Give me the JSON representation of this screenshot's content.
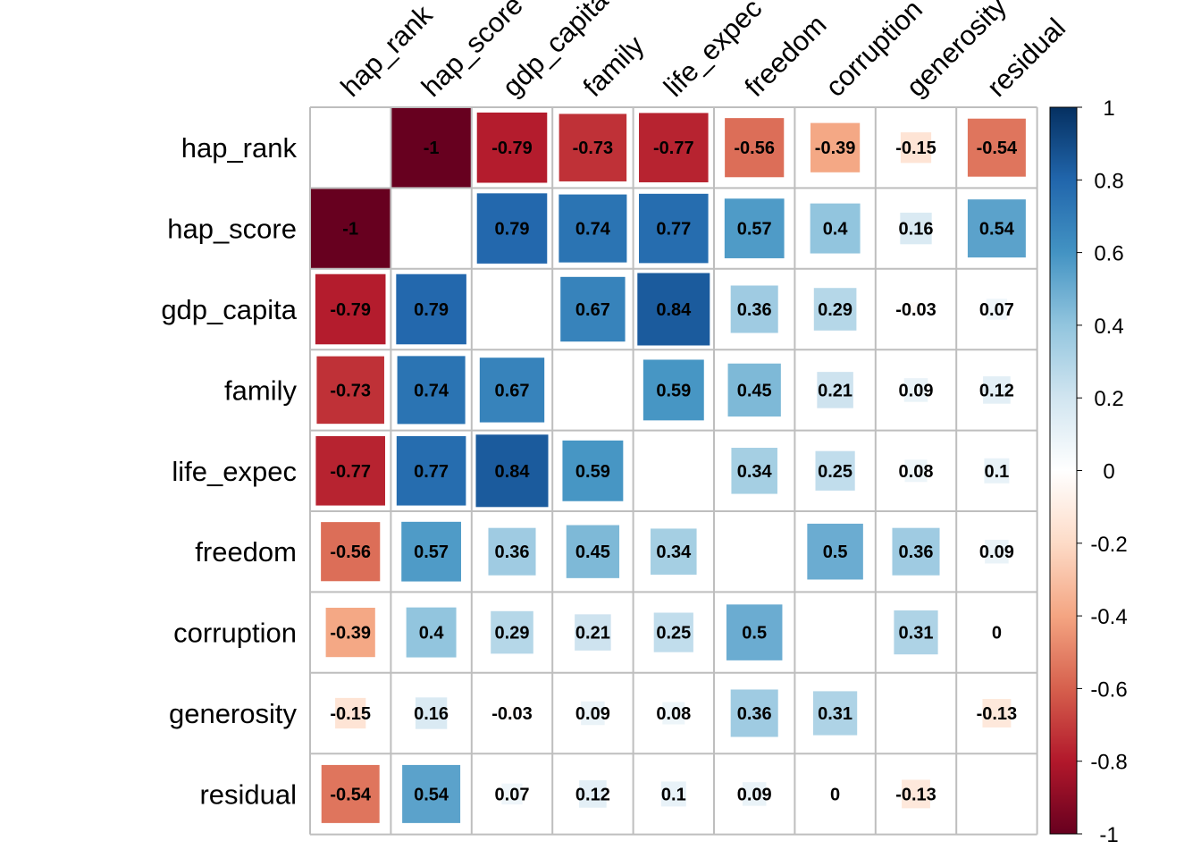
{
  "chart_data": {
    "type": "heatmap",
    "variables": [
      "hap_rank",
      "hap_score",
      "gdp_capita",
      "family",
      "life_expec",
      "freedom",
      "corruption",
      "generosity",
      "residual"
    ],
    "matrix": [
      [
        null,
        -1,
        -0.79,
        -0.73,
        -0.77,
        -0.56,
        -0.39,
        -0.15,
        -0.54
      ],
      [
        -1,
        null,
        0.79,
        0.74,
        0.77,
        0.57,
        0.4,
        0.16,
        0.54
      ],
      [
        -0.79,
        0.79,
        null,
        0.67,
        0.84,
        0.36,
        0.29,
        -0.03,
        0.07
      ],
      [
        -0.73,
        0.74,
        0.67,
        null,
        0.59,
        0.45,
        0.21,
        0.09,
        0.12
      ],
      [
        -0.77,
        0.77,
        0.84,
        0.59,
        null,
        0.34,
        0.25,
        0.08,
        0.1
      ],
      [
        -0.56,
        0.57,
        0.36,
        0.45,
        0.34,
        null,
        0.5,
        0.36,
        0.09
      ],
      [
        -0.39,
        0.4,
        0.29,
        0.21,
        0.25,
        0.5,
        null,
        0.31,
        0
      ],
      [
        -0.15,
        0.16,
        -0.03,
        0.09,
        0.08,
        0.36,
        0.31,
        null,
        -0.13
      ],
      [
        -0.54,
        0.54,
        0.07,
        0.12,
        0.1,
        0.09,
        0,
        -0.13,
        null
      ]
    ],
    "value_range": [
      -1,
      1
    ],
    "legend": {
      "placement": "right",
      "ticks": [
        "1",
        "0.8",
        "0.6",
        "0.4",
        "0.2",
        "0",
        "-0.2",
        "-0.4",
        "-0.6",
        "-0.8",
        "-1"
      ],
      "tick_values": [
        1,
        0.8,
        0.6,
        0.4,
        0.2,
        0,
        -0.2,
        -0.4,
        -0.6,
        -0.8,
        -1
      ]
    },
    "colors": {
      "negative_strong": "#67001F",
      "positive_strong": "#053061",
      "neutral": "#FFFFFF",
      "grid": "#BEBEBE"
    }
  }
}
